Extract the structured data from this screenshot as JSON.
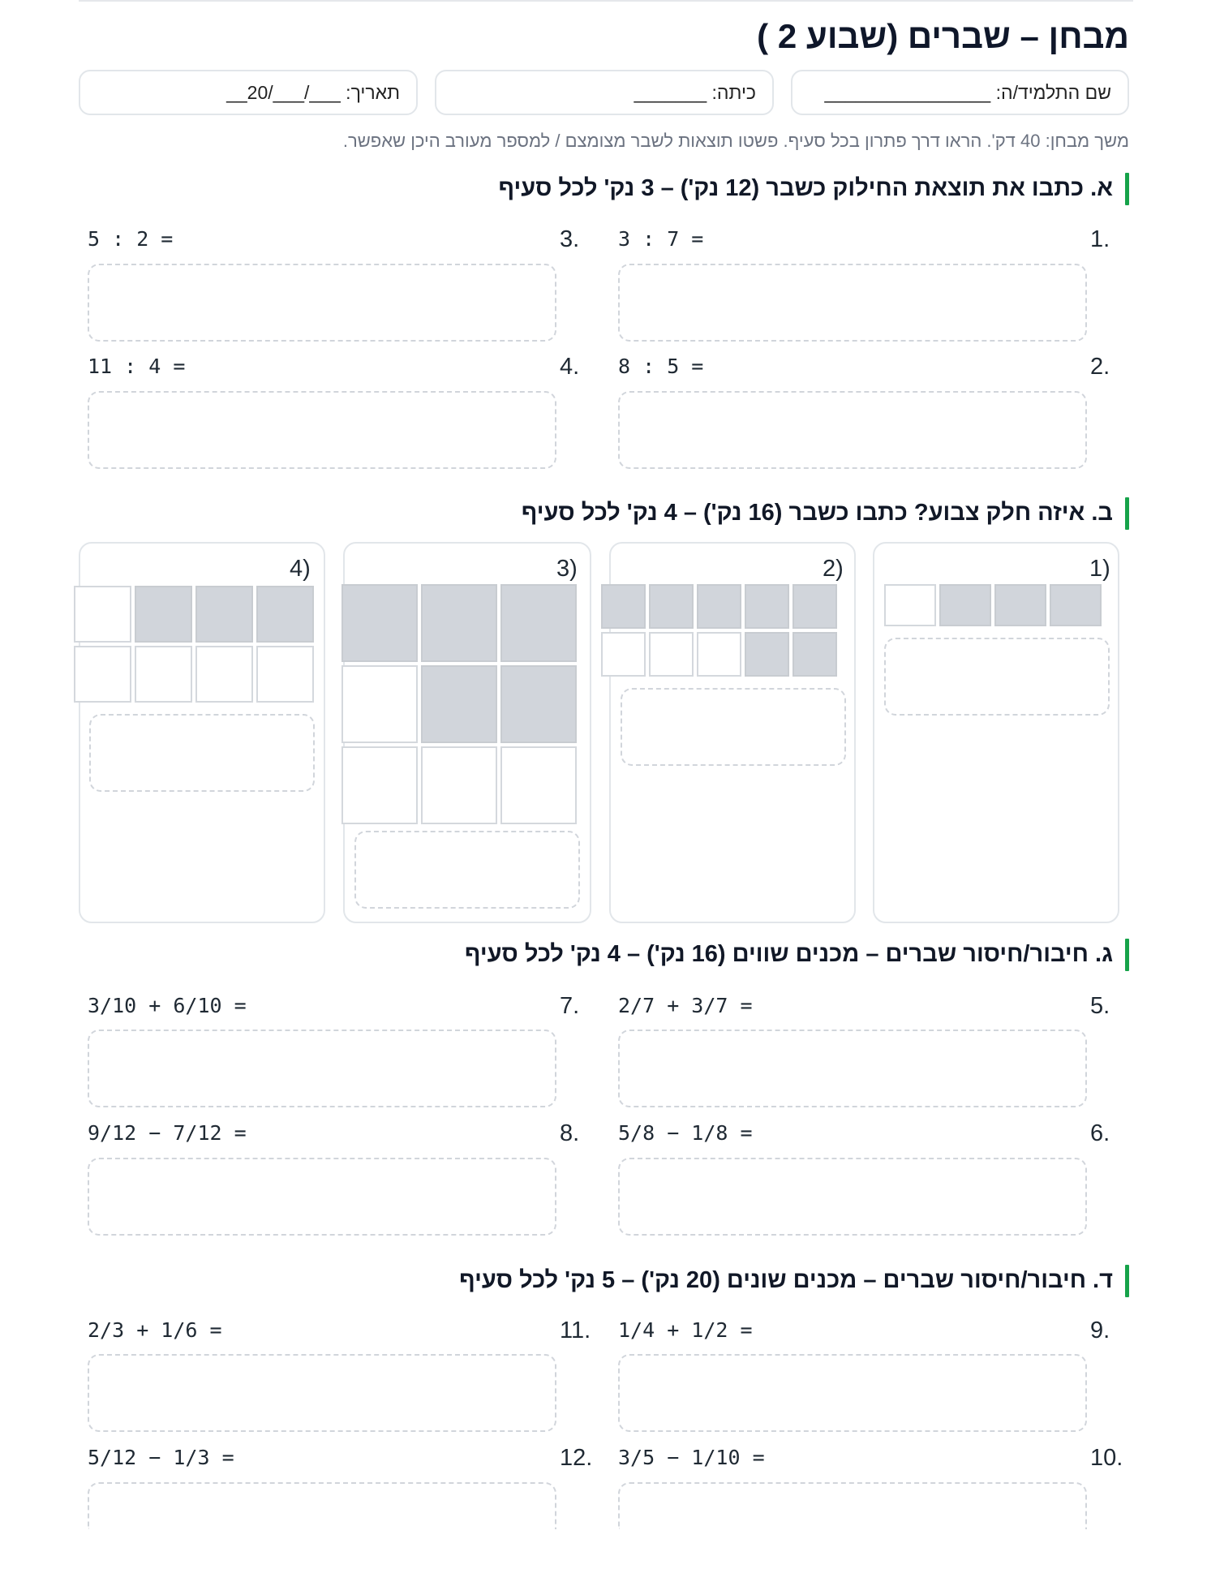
{
  "title": "מבחן – שברים (שבוע 2 )",
  "fields": {
    "name": "שם התלמיד/ה: ________________",
    "class": "כיתה: _______",
    "date": "תאריך: ___/___/20__"
  },
  "note": "משך מבחן: 40 דק'. הראו דרך פתרון בכל סעיף. פשטו תוצאות לשבר מצומצם / למספר מעורב היכן שאפשר.",
  "sections": {
    "a": {
      "title": "א. כתבו את תוצאת החילוק כשבר (12 נק') – 3 נק' לכל סעיף",
      "q1": {
        "num": "1.",
        "expr": "3 : 7 ="
      },
      "q2": {
        "num": "2.",
        "expr": "8 : 5 ="
      },
      "q3": {
        "num": "3.",
        "expr": "5 : 2 ="
      },
      "q4": {
        "num": "4.",
        "expr": "11 : 4 ="
      }
    },
    "b": {
      "title": "ב. איזה חלק צבוע? כתבו כשבר (16 נק') – 4 נק' לכל סעיף",
      "cards": [
        {
          "label": "1)",
          "cols": 4,
          "rows": 1,
          "shaded": 3
        },
        {
          "label": "2)",
          "cols": 5,
          "rows": 2,
          "shaded": 7
        },
        {
          "label": "3)",
          "cols": 3,
          "rows": 3,
          "shaded": 5
        },
        {
          "label": "4)",
          "cols": 4,
          "rows": 2,
          "shaded": 3
        }
      ]
    },
    "c": {
      "title": "ג. חיבור/חיסור שברים – מכנים שווים (16 נק') – 4 נק' לכל סעיף",
      "q5": {
        "num": "5.",
        "expr": "2/7 + 3/7 ="
      },
      "q6": {
        "num": "6.",
        "expr": "5/8 − 1/8 ="
      },
      "q7": {
        "num": "7.",
        "expr": "3/10 + 6/10 ="
      },
      "q8": {
        "num": "8.",
        "expr": "9/12 − 7/12 ="
      }
    },
    "d": {
      "title": "ד. חיבור/חיסור שברים – מכנים שונים (20 נק') – 5 נק' לכל סעיף",
      "q9": {
        "num": "9.",
        "expr": "1/4 + 1/2 ="
      },
      "q10": {
        "num": "10.",
        "expr": "3/5 − 1/10 ="
      },
      "q11": {
        "num": "11.",
        "expr": "2/3 + 1/6 ="
      },
      "q12": {
        "num": "12.",
        "expr": "5/12 − 1/3 ="
      }
    }
  },
  "colors": {
    "accent": "#16a34a",
    "shaded": "#d1d5db",
    "border": "#e2e6ea"
  }
}
